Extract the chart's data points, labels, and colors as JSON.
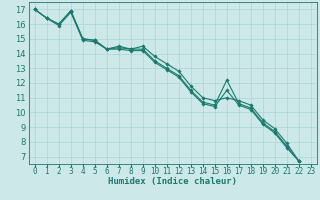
{
  "xlabel": "Humidex (Indice chaleur)",
  "bg_color": "#cce8e8",
  "line_color": "#1a7a6e",
  "grid_color": "#aad4d4",
  "grid_minor_color": "#bedddd",
  "xlim": [
    -0.5,
    23.5
  ],
  "ylim": [
    6.5,
    17.5
  ],
  "xticks": [
    0,
    1,
    2,
    3,
    4,
    5,
    6,
    7,
    8,
    9,
    10,
    11,
    12,
    13,
    14,
    15,
    16,
    17,
    18,
    19,
    20,
    21,
    22,
    23
  ],
  "yticks": [
    7,
    8,
    9,
    10,
    11,
    12,
    13,
    14,
    15,
    16,
    17
  ],
  "series": [
    [
      17.0,
      16.4,
      16.0,
      16.9,
      15.0,
      14.9,
      14.3,
      14.4,
      14.3,
      14.3,
      13.5,
      13.0,
      12.5,
      11.5,
      10.7,
      10.5,
      12.2,
      10.6,
      10.3,
      9.3,
      8.7,
      7.7,
      6.7
    ],
    [
      17.0,
      16.4,
      16.0,
      16.9,
      15.0,
      14.9,
      14.3,
      14.5,
      14.3,
      14.5,
      13.8,
      13.3,
      12.8,
      11.8,
      11.0,
      10.8,
      11.0,
      10.8,
      10.5,
      9.5,
      8.9,
      7.9,
      6.7
    ],
    [
      17.0,
      16.4,
      15.9,
      16.8,
      14.9,
      14.8,
      14.3,
      14.3,
      14.2,
      14.2,
      13.4,
      12.9,
      12.4,
      11.4,
      10.6,
      10.4,
      11.5,
      10.5,
      10.2,
      9.2,
      8.6,
      7.6,
      6.7
    ]
  ],
  "x_indices": [
    0,
    1,
    2,
    3,
    4,
    5,
    6,
    7,
    8,
    9,
    10,
    11,
    12,
    13,
    14,
    15,
    16,
    17,
    18,
    19,
    20,
    21,
    22
  ]
}
